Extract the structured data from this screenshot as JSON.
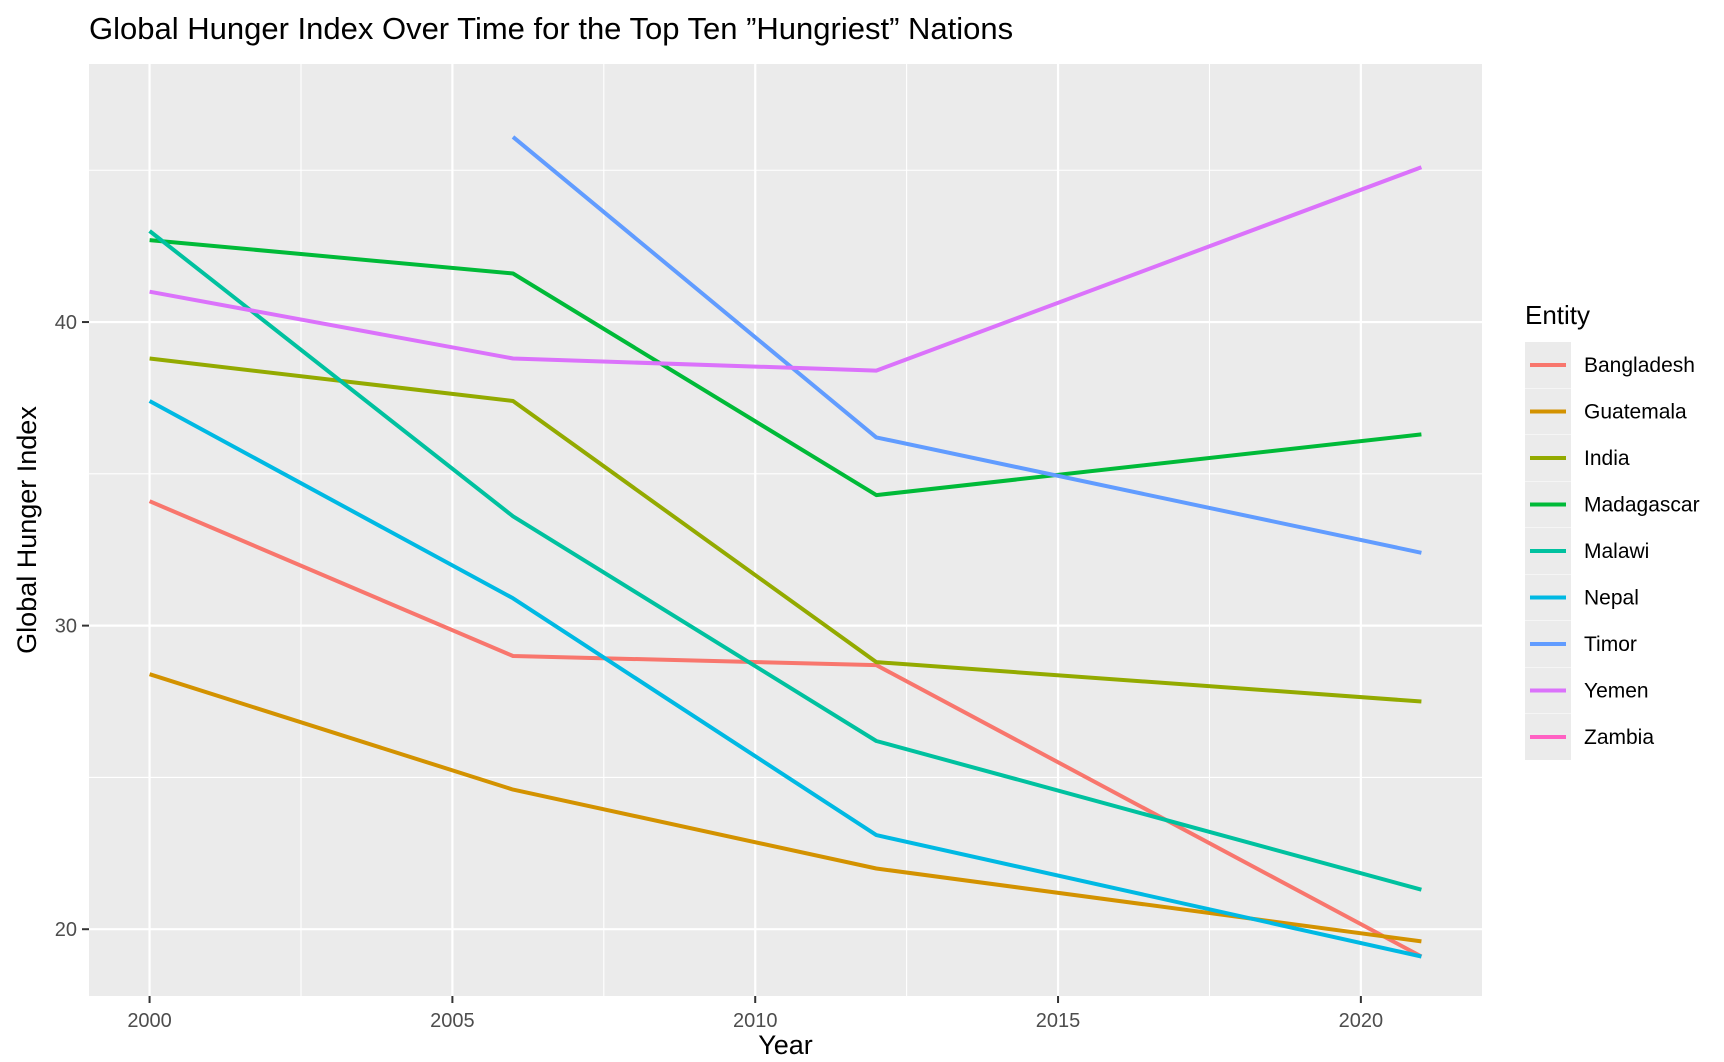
{
  "chart_data": {
    "type": "line",
    "title": "Global Hunger Index Over Time for the Top Ten ”Hungriest” Nations",
    "xlabel": "Year",
    "ylabel": "Global Hunger Index",
    "xlim": [
      1999,
      2022
    ],
    "ylim": [
      17.8,
      48.5
    ],
    "x_ticks": [
      2000,
      2005,
      2010,
      2015,
      2020
    ],
    "y_ticks": [
      20,
      30,
      40
    ],
    "x_tick_labels": [
      "2000",
      "2005",
      "2010",
      "2015",
      "2020"
    ],
    "y_tick_labels": [
      "20",
      "30",
      "40"
    ],
    "grid": true,
    "background": "#ebebeb",
    "legend": {
      "title": "Entity",
      "position": "right"
    },
    "series": [
      {
        "name": "Bangladesh",
        "color": "#F8766D",
        "points": [
          [
            2000,
            34.1
          ],
          [
            2006,
            29.0
          ],
          [
            2012,
            28.7
          ],
          [
            2021,
            19.1
          ]
        ]
      },
      {
        "name": "Guatemala",
        "color": "#D39200",
        "points": [
          [
            2000,
            28.4
          ],
          [
            2006,
            24.6
          ],
          [
            2012,
            22.0
          ],
          [
            2021,
            19.6
          ]
        ]
      },
      {
        "name": "India",
        "color": "#93AA00",
        "points": [
          [
            2000,
            38.8
          ],
          [
            2006,
            37.4
          ],
          [
            2012,
            28.8
          ],
          [
            2021,
            27.5
          ]
        ]
      },
      {
        "name": "Madagascar",
        "color": "#00BA38",
        "points": [
          [
            2000,
            42.7
          ],
          [
            2006,
            41.6
          ],
          [
            2012,
            34.3
          ],
          [
            2021,
            36.3
          ]
        ]
      },
      {
        "name": "Malawi",
        "color": "#00C19F",
        "points": [
          [
            2000,
            43.0
          ],
          [
            2006,
            33.6
          ],
          [
            2012,
            26.2
          ],
          [
            2021,
            21.3
          ]
        ]
      },
      {
        "name": "Nepal",
        "color": "#00B9E3",
        "points": [
          [
            2000,
            37.4
          ],
          [
            2006,
            30.9
          ],
          [
            2012,
            23.1
          ],
          [
            2021,
            19.1
          ]
        ]
      },
      {
        "name": "Timor",
        "color": "#619CFF",
        "points": [
          [
            2006,
            46.1
          ],
          [
            2012,
            36.2
          ],
          [
            2021,
            32.4
          ]
        ]
      },
      {
        "name": "Yemen",
        "color": "#DB72FB",
        "points": [
          [
            2000,
            41.0
          ],
          [
            2006,
            38.8
          ],
          [
            2012,
            38.4
          ],
          [
            2021,
            45.1
          ]
        ]
      },
      {
        "name": "Zambia",
        "color": "#FF61C3",
        "points": []
      }
    ]
  }
}
